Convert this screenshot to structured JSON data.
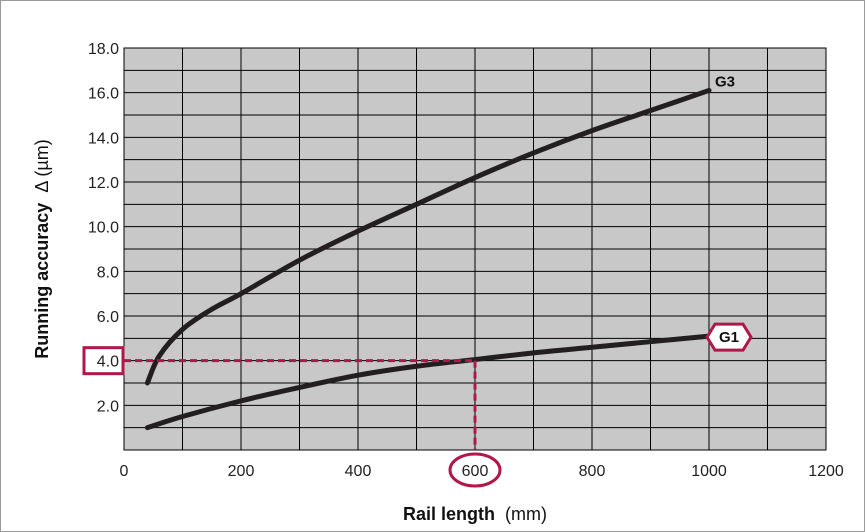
{
  "chart_data": {
    "type": "line",
    "xlabel": {
      "bold": "Rail length",
      "unit": "(mm)"
    },
    "ylabel": {
      "bold": "Running accuracy",
      "unit": "Δ (µm)"
    },
    "xlim": [
      0,
      1200
    ],
    "ylim": [
      0,
      18
    ],
    "x_ticks": [
      "0",
      "200",
      "400",
      "600",
      "800",
      "1000",
      "1200"
    ],
    "y_ticks": [
      "2.0",
      "4.0",
      "6.0",
      "8.0",
      "10.0",
      "12.0",
      "14.0",
      "16.0",
      "18.0"
    ],
    "grid": true,
    "series": [
      {
        "name": "G3",
        "x": [
          40,
          60,
          100,
          150,
          200,
          300,
          400,
          500,
          600,
          700,
          800,
          900,
          1000
        ],
        "y": [
          3.0,
          4.2,
          5.4,
          6.3,
          7.0,
          8.5,
          9.8,
          11.0,
          12.2,
          13.3,
          14.3,
          15.2,
          16.1
        ]
      },
      {
        "name": "G1",
        "x": [
          40,
          100,
          200,
          300,
          400,
          500,
          600,
          700,
          800,
          900,
          1000
        ],
        "y": [
          1.0,
          1.5,
          2.2,
          2.8,
          3.35,
          3.75,
          4.05,
          4.35,
          4.6,
          4.85,
          5.1
        ]
      }
    ],
    "annotation": {
      "x": 600,
      "y": 4.0,
      "x_label": "600",
      "y_label": "4.0",
      "series": "G1"
    }
  },
  "colors": {
    "plot_bg": "#c8c8c8",
    "grid": "#000000",
    "line": "#231f20",
    "accent": "#b0174a"
  }
}
